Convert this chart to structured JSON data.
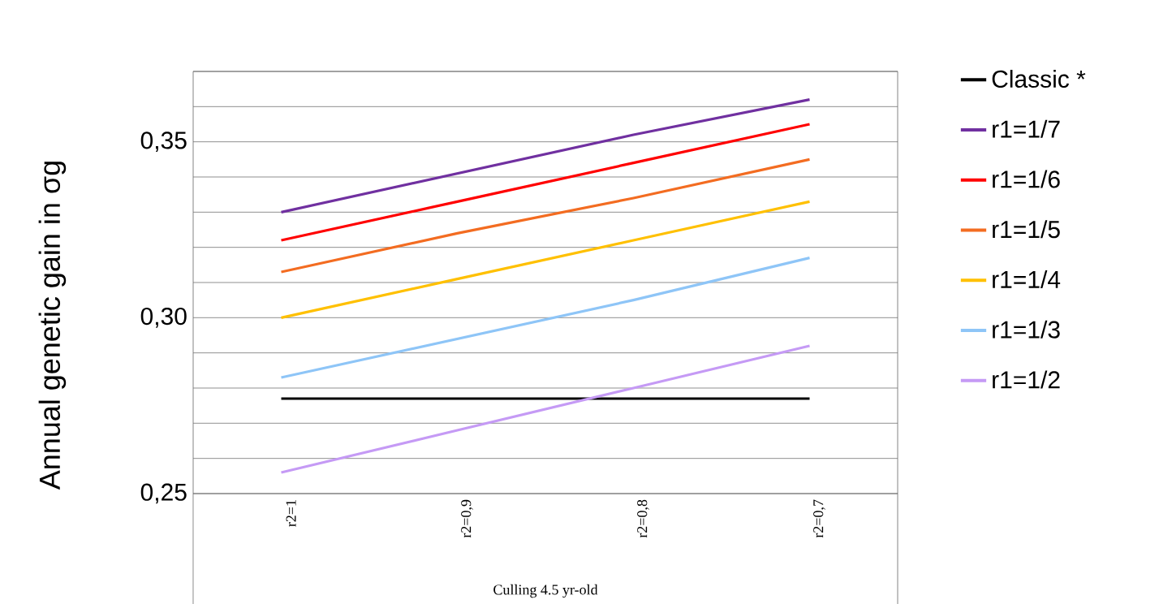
{
  "chart_data": {
    "type": "line",
    "ylabel": "Annual genetic gain in σg",
    "xlabel": "Culling 4.5 yr-old",
    "categories": [
      "r2=1",
      "r2=0,9",
      "r2=0,8",
      "r2=0,7"
    ],
    "series": [
      {
        "name": "Classic *",
        "color": "#000000",
        "values": [
          0.277,
          0.277,
          0.277,
          0.277
        ]
      },
      {
        "name": "r1=1/7",
        "color": "#7030a0",
        "values": [
          0.33,
          0.341,
          0.352,
          0.362
        ]
      },
      {
        "name": "r1=1/6",
        "color": "#ff0000",
        "values": [
          0.322,
          0.333,
          0.344,
          0.355
        ]
      },
      {
        "name": "r1=1/5",
        "color": "#f36c21",
        "values": [
          0.313,
          0.324,
          0.334,
          0.345
        ]
      },
      {
        "name": "r1=1/4",
        "color": "#ffc000",
        "values": [
          0.3,
          0.311,
          0.322,
          0.333
        ]
      },
      {
        "name": "r1=1/3",
        "color": "#8ec5f7",
        "values": [
          0.283,
          0.294,
          0.305,
          0.317
        ]
      },
      {
        "name": "r1=1/2",
        "color": "#c59af5",
        "values": [
          0.256,
          0.268,
          0.28,
          0.292
        ]
      }
    ],
    "ylim": [
      0.25,
      0.37
    ],
    "yticks": [
      {
        "value": 0.25,
        "label": "0,25"
      },
      {
        "value": 0.26,
        "label": null
      },
      {
        "value": 0.27,
        "label": null
      },
      {
        "value": 0.28,
        "label": null
      },
      {
        "value": 0.29,
        "label": null
      },
      {
        "value": 0.3,
        "label": "0,30"
      },
      {
        "value": 0.31,
        "label": null
      },
      {
        "value": 0.32,
        "label": null
      },
      {
        "value": 0.33,
        "label": null
      },
      {
        "value": 0.34,
        "label": null
      },
      {
        "value": 0.35,
        "label": "0,35"
      },
      {
        "value": 0.36,
        "label": null
      },
      {
        "value": 0.37,
        "label": null
      }
    ],
    "grid": "y",
    "legend": "right",
    "marker": "none",
    "line_style": "solid"
  }
}
